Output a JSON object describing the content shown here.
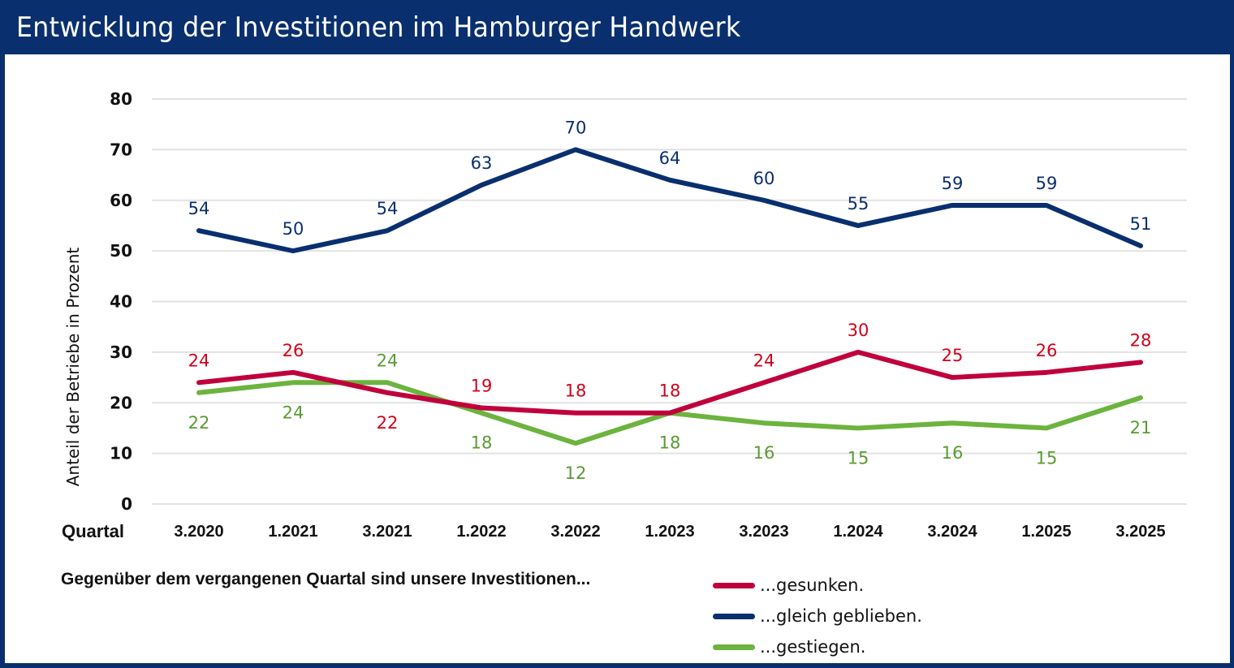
{
  "header": {
    "title": "Entwicklung der Investitionen im Hamburger Handwerk"
  },
  "legend": {
    "heading": "Gegenüber dem vergangenen Quartal sind unsere Investitionen..."
  },
  "chart_data": {
    "type": "line",
    "title": "Entwicklung der Investitionen im Hamburger Handwerk",
    "xlabel": "Quartal",
    "ylabel": "Anteil der Betriebe in Prozent",
    "ylim": [
      0,
      80
    ],
    "yticks": [
      0,
      10,
      20,
      30,
      40,
      50,
      60,
      70,
      80
    ],
    "grid": true,
    "legend_position": "bottom-right",
    "categories": [
      "3.2020",
      "1.2021",
      "3.2021",
      "1.2022",
      "3.2022",
      "1.2023",
      "3.2023",
      "1.2024",
      "3.2024",
      "1.2025",
      "3.2025"
    ],
    "series": [
      {
        "name": "...gesunken.",
        "color": "#c0003c",
        "label_color": "#d0021b",
        "values": [
          24,
          26,
          22,
          19,
          18,
          18,
          24,
          30,
          25,
          26,
          28
        ],
        "label_positions": [
          "above",
          "above",
          "below",
          "above",
          "above",
          "above",
          "above",
          "above",
          "above",
          "above",
          "above"
        ]
      },
      {
        "name": "...gleich geblieben.",
        "color": "#0a2f6e",
        "label_color": "#0a2f6e",
        "values": [
          54,
          50,
          54,
          63,
          70,
          64,
          60,
          55,
          59,
          59,
          51
        ],
        "label_positions": [
          "above",
          "above",
          "above",
          "above",
          "above",
          "above",
          "above",
          "above",
          "above",
          "above",
          "above"
        ]
      },
      {
        "name": "...gestiegen.",
        "color": "#6db33f",
        "label_color": "#5a9a34",
        "values": [
          22,
          24,
          24,
          18,
          12,
          18,
          16,
          15,
          16,
          15,
          21
        ],
        "label_positions": [
          "below",
          "below",
          "above",
          "below",
          "below",
          "below",
          "below",
          "below",
          "below",
          "below",
          "below"
        ]
      }
    ]
  }
}
